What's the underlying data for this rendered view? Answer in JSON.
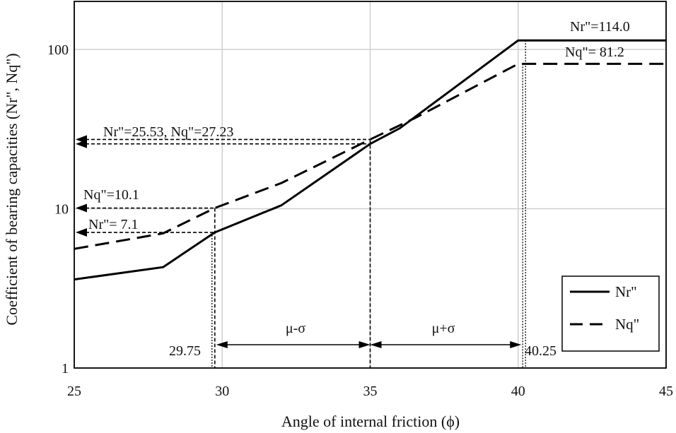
{
  "chart_data": {
    "type": "line",
    "xlabel": "Angle of internal friction (ϕ)",
    "ylabel": "Coefficient of bearing capacities (Nr\", Nq\")",
    "xlim": [
      25,
      45
    ],
    "ylim": [
      1,
      200
    ],
    "yscale": "log",
    "grid": true,
    "legend_position": "bottom-right",
    "x_ticks": [
      "25",
      "30",
      "35",
      "40",
      "45"
    ],
    "y_ticks": [
      "1",
      "10",
      "100"
    ],
    "series": [
      {
        "name": "Nr\"",
        "style": "solid",
        "x": [
          25,
          28,
          29.75,
          32,
          35,
          36,
          40,
          45
        ],
        "y": [
          3.6,
          4.3,
          7.1,
          10.5,
          25.53,
          32,
          114.0,
          114.0
        ]
      },
      {
        "name": "Nq\"",
        "style": "dashed",
        "x": [
          25,
          28,
          29.75,
          32,
          35,
          36.5,
          40,
          45
        ],
        "y": [
          5.6,
          7.0,
          10.1,
          14.5,
          27.23,
          37,
          81.2,
          81.2
        ]
      }
    ],
    "annotations": {
      "nr_max": "Nr\"=114.0",
      "nq_max": "Nq\"=  81.2",
      "mean_values": "Nr\"=25.53, Nq\"=27.23",
      "nq_low": "Nq\"=10.1",
      "nr_low": "Nr\"=  7.1",
      "x_low": "29.75",
      "x_high": "40.25",
      "range_low": "μ-σ",
      "range_high": "μ+σ"
    },
    "reference_x": [
      29.75,
      35,
      40.25
    ],
    "reference_y": {
      "mean_nr": 25.53,
      "mean_nq": 27.23,
      "low_nq": 10.1,
      "low_nr": 7.1
    }
  }
}
